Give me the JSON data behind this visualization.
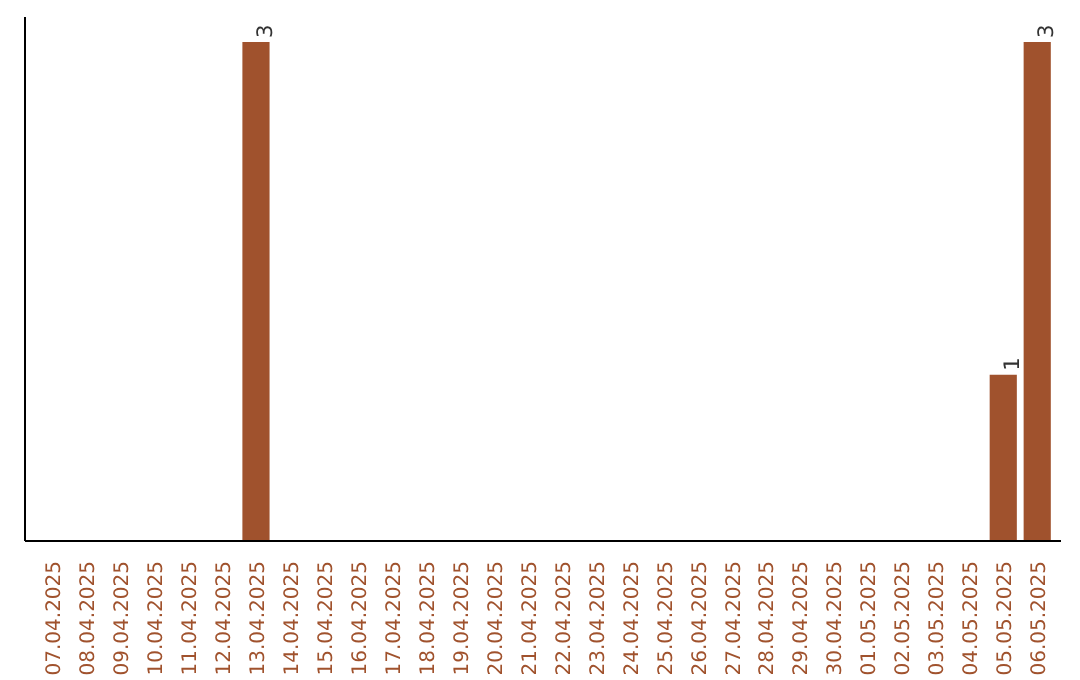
{
  "chart_data": {
    "type": "bar",
    "categories": [
      "07.04.2025",
      "08.04.2025",
      "09.04.2025",
      "10.04.2025",
      "11.04.2025",
      "12.04.2025",
      "13.04.2025",
      "14.04.2025",
      "15.04.2025",
      "16.04.2025",
      "17.04.2025",
      "18.04.2025",
      "19.04.2025",
      "20.04.2025",
      "21.04.2025",
      "22.04.2025",
      "23.04.2025",
      "24.04.2025",
      "25.04.2025",
      "26.04.2025",
      "27.04.2025",
      "28.04.2025",
      "29.04.2025",
      "30.04.2025",
      "01.05.2025",
      "02.05.2025",
      "03.05.2025",
      "04.05.2025",
      "05.05.2025",
      "06.05.2025"
    ],
    "values": [
      null,
      null,
      null,
      null,
      null,
      null,
      3,
      null,
      null,
      null,
      null,
      null,
      null,
      null,
      null,
      null,
      null,
      null,
      null,
      null,
      null,
      null,
      null,
      null,
      null,
      null,
      null,
      null,
      1,
      3
    ],
    "color": "#a0522d",
    "data_labels": true,
    "tick_labels": "x"
  }
}
